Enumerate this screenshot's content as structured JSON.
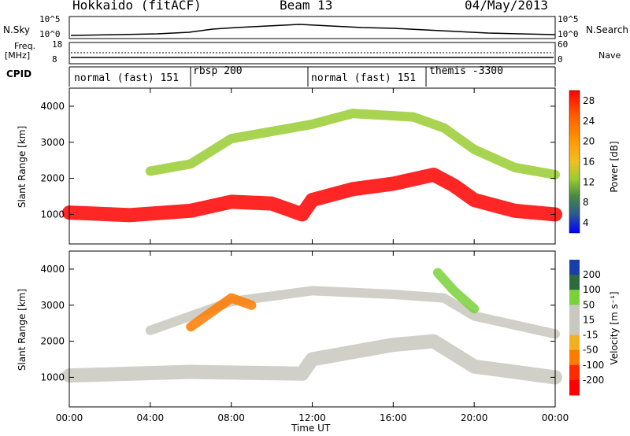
{
  "header": {
    "station": "Hokkaido (fitACF)",
    "beam": "Beam 13",
    "date": "04/May/2013"
  },
  "summary": {
    "nsky_label": "N.Sky",
    "nsky_ticks": [
      "10^5",
      "10^0"
    ],
    "nsearch_label": "N.Search",
    "nsearch_ticks": [
      "10^5",
      "10^0"
    ],
    "freq_label_1": "Freq.",
    "freq_label_2": "[MHz]",
    "freq_ticks": [
      "18",
      "8"
    ],
    "nave_label": "Nave",
    "nave_ticks": [
      "60",
      "0"
    ],
    "cpid_label": "CPID",
    "cpid_segments": [
      {
        "label": "normal (fast) 151",
        "start_hour": 0
      },
      {
        "label": "rbsp 200",
        "start_hour": 6
      },
      {
        "label": "normal (fast) 151",
        "start_hour": 12
      },
      {
        "label": "themis -3300",
        "start_hour": 18
      }
    ]
  },
  "chart_data": [
    {
      "type": "heatmap",
      "parameter": "Power",
      "ylabel": "Slant Range [km]",
      "xlabel": "Time UT",
      "xlim_hours": [
        0,
        24
      ],
      "ylim": [
        180,
        4500
      ],
      "yticks": [
        "1000",
        "2000",
        "3000",
        "4000"
      ],
      "colorbar_label": "Power [dB]",
      "colorbar_ticks": [
        "28",
        "24",
        "20",
        "16",
        "12",
        "8",
        "4"
      ],
      "colorbar_colors": [
        "#ff0000",
        "#ff5a00",
        "#ff9a00",
        "#f0c020",
        "#9acd32",
        "#4a8a40",
        "#2a5a90",
        "#0000ff"
      ],
      "echo_bands": [
        {
          "label": "main band",
          "points": [
            [
              0,
              1050
            ],
            [
              3,
              980
            ],
            [
              6,
              1100
            ],
            [
              8,
              1350
            ],
            [
              10,
              1300
            ],
            [
              11.5,
              1000
            ],
            [
              12,
              1400
            ],
            [
              14,
              1700
            ],
            [
              16,
              1850
            ],
            [
              18,
              2100
            ],
            [
              19,
              1800
            ],
            [
              20,
              1400
            ],
            [
              22,
              1100
            ],
            [
              24,
              1000
            ]
          ],
          "power_db": 28
        },
        {
          "label": "upper band",
          "points": [
            [
              4,
              2200
            ],
            [
              6,
              2400
            ],
            [
              8,
              3100
            ],
            [
              10,
              3300
            ],
            [
              12,
              3500
            ],
            [
              14,
              3800
            ],
            [
              17,
              3700
            ],
            [
              18.5,
              3400
            ],
            [
              20,
              2800
            ],
            [
              22,
              2300
            ],
            [
              24,
              2100
            ]
          ],
          "power_db": 14
        }
      ]
    },
    {
      "type": "heatmap",
      "parameter": "Velocity",
      "ylabel": "Slant Range [km]",
      "xlabel": "Time UT",
      "xlim_hours": [
        0,
        24
      ],
      "ylim": [
        180,
        4500
      ],
      "xticks": [
        "00:00",
        "04:00",
        "08:00",
        "12:00",
        "16:00",
        "20:00",
        "00:00"
      ],
      "yticks": [
        "1000",
        "2000",
        "3000",
        "4000"
      ],
      "colorbar_label": "Velocity [m s⁻¹]",
      "colorbar_ticks": [
        "200",
        "100",
        "50",
        "15",
        "-15",
        "-50",
        "-100",
        "-200"
      ],
      "colorbar_colors": [
        "#1a3ea8",
        "#2e6a3e",
        "#7ad13a",
        "#c8c8c0",
        "#c8c8c0",
        "#f0b020",
        "#ff7a00",
        "#ff2a00",
        "#ff0000"
      ],
      "echo_bands": [
        {
          "label": "main band",
          "points": [
            [
              0,
              1050
            ],
            [
              6,
              1150
            ],
            [
              11.5,
              1100
            ],
            [
              12,
              1500
            ],
            [
              16,
              1900
            ],
            [
              18,
              2000
            ],
            [
              20,
              1300
            ],
            [
              24,
              1000
            ]
          ],
          "velocity": 0
        },
        {
          "label": "upper band",
          "points": [
            [
              4,
              2300
            ],
            [
              8,
              3100
            ],
            [
              12,
              3400
            ],
            [
              16,
              3300
            ],
            [
              18.5,
              3200
            ],
            [
              20,
              2700
            ],
            [
              24,
              2200
            ]
          ],
          "velocity": 0
        },
        {
          "label": "green region",
          "points": [
            [
              18.2,
              3900
            ],
            [
              19,
              3400
            ],
            [
              20,
              2900
            ]
          ],
          "velocity": 50
        },
        {
          "label": "orange region",
          "points": [
            [
              6,
              2400
            ],
            [
              8,
              3200
            ],
            [
              9,
              3000
            ]
          ],
          "velocity": -50
        }
      ]
    }
  ]
}
